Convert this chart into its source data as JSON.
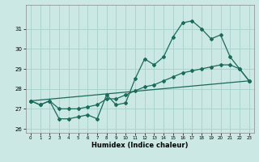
{
  "xlabel": "Humidex (Indice chaleur)",
  "bg_color": "#cce8e4",
  "grid_color": "#aad4ce",
  "line_color": "#1a6b5a",
  "series1_x": [
    0,
    1,
    2,
    3,
    4,
    5,
    6,
    7,
    8,
    9,
    10,
    11,
    12,
    13,
    14,
    15,
    16,
    17,
    18,
    19,
    20,
    21,
    22,
    23
  ],
  "series1_y": [
    27.4,
    27.2,
    27.4,
    26.5,
    26.5,
    26.6,
    26.7,
    26.5,
    27.7,
    27.2,
    27.3,
    28.5,
    29.5,
    29.2,
    29.6,
    30.6,
    31.3,
    31.4,
    31.0,
    30.5,
    30.7,
    29.6,
    29.0,
    28.4
  ],
  "series2_x": [
    0,
    1,
    2,
    3,
    4,
    5,
    6,
    7,
    8,
    9,
    10,
    11,
    12,
    13,
    14,
    15,
    16,
    17,
    18,
    19,
    20,
    21,
    22,
    23
  ],
  "series2_y": [
    27.4,
    27.2,
    27.4,
    27.0,
    27.0,
    27.0,
    27.1,
    27.2,
    27.5,
    27.5,
    27.7,
    27.9,
    28.1,
    28.2,
    28.4,
    28.6,
    28.8,
    28.9,
    29.0,
    29.1,
    29.2,
    29.2,
    29.0,
    28.4
  ],
  "series3_x": [
    0,
    23
  ],
  "series3_y": [
    27.4,
    28.4
  ],
  "ylim": [
    25.8,
    32.2
  ],
  "yticks": [
    26,
    27,
    28,
    29,
    30,
    31
  ],
  "xlim": [
    -0.5,
    23.5
  ],
  "xticks": [
    0,
    1,
    2,
    3,
    4,
    5,
    6,
    7,
    8,
    9,
    10,
    11,
    12,
    13,
    14,
    15,
    16,
    17,
    18,
    19,
    20,
    21,
    22,
    23
  ]
}
